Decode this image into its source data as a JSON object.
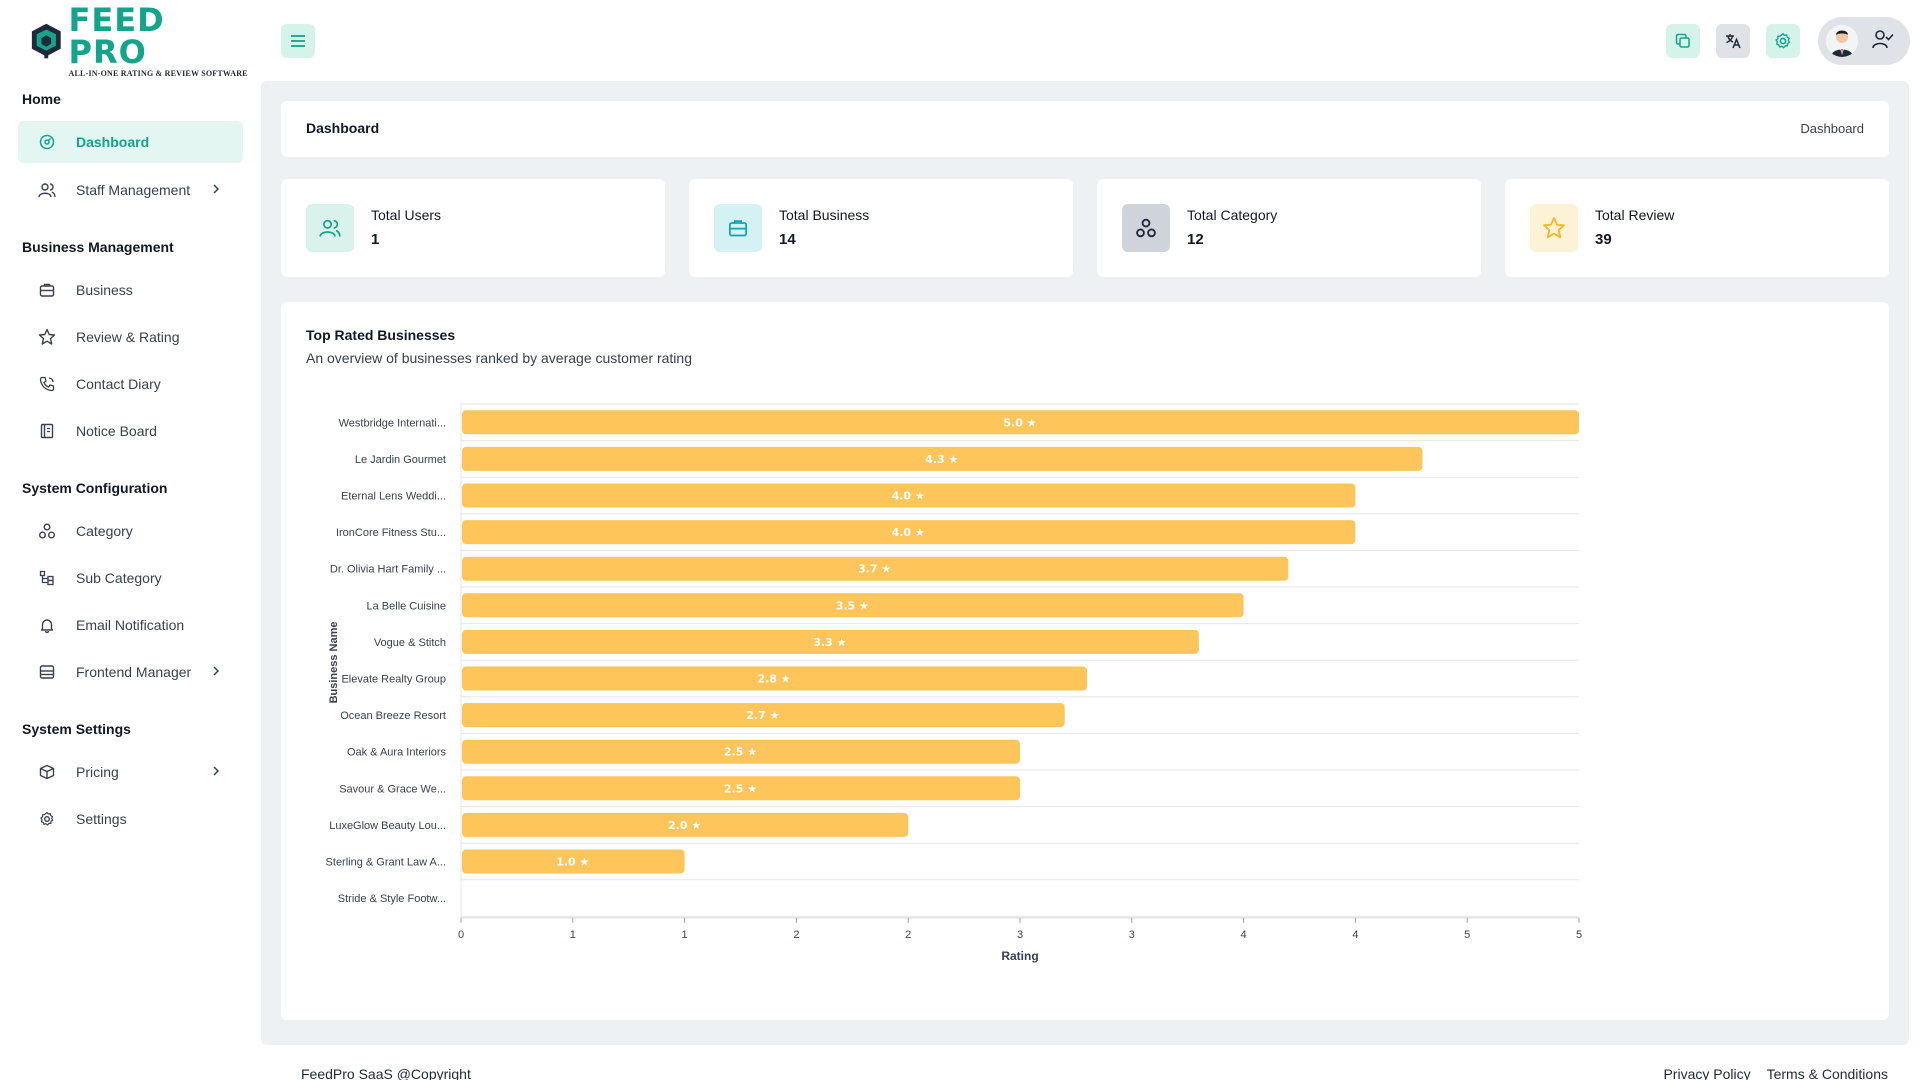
{
  "brand": {
    "title_a": "FEED",
    "title_b": "PRO",
    "subtitle": "ALL-IN-ONE RATING & REVIEW SOFTWARE",
    "accent": "#14a38b"
  },
  "sidebar": {
    "sections": [
      {
        "label": "Home"
      },
      {
        "label": "Business Management"
      },
      {
        "label": "System Configuration"
      },
      {
        "label": "System Settings"
      }
    ],
    "items": [
      {
        "label": "Dashboard",
        "icon": "dashboard-icon",
        "active": true
      },
      {
        "label": "Staff Management",
        "icon": "users-icon",
        "chevron": true
      },
      {
        "label": "Business",
        "icon": "briefcase-icon"
      },
      {
        "label": "Review & Rating",
        "icon": "star-icon"
      },
      {
        "label": "Contact Diary",
        "icon": "phone-icon"
      },
      {
        "label": "Notice Board",
        "icon": "notice-icon"
      },
      {
        "label": "Category",
        "icon": "category-icon"
      },
      {
        "label": "Sub Category",
        "icon": "subcategory-icon"
      },
      {
        "label": "Email Notification",
        "icon": "bell-icon"
      },
      {
        "label": "Frontend Manager",
        "icon": "layout-icon",
        "chevron": true
      },
      {
        "label": "Pricing",
        "icon": "box-icon",
        "chevron": true
      },
      {
        "label": "Settings",
        "icon": "gear-icon"
      }
    ]
  },
  "header": {
    "icons": [
      "copy-icon",
      "translate-icon",
      "gear-icon",
      "user-check-icon"
    ]
  },
  "page": {
    "title": "Dashboard",
    "breadcrumb": "Dashboard"
  },
  "stats": [
    {
      "label": "Total Users",
      "value": "1",
      "icon": "users-icon",
      "color": "#d9f3ec",
      "icon_color": "#14a38b"
    },
    {
      "label": "Total Business",
      "value": "14",
      "icon": "briefcase-icon",
      "color": "#d4f1f4",
      "icon_color": "#14a3b5"
    },
    {
      "label": "Total Category",
      "value": "12",
      "icon": "category-icon",
      "color": "#cfd4da",
      "icon_color": "#1f2937"
    },
    {
      "label": "Total Review",
      "value": "39",
      "icon": "star-icon",
      "color": "#fdf2d6",
      "icon_color": "#f5b82e"
    }
  ],
  "chart": {
    "title": "Top Rated Businesses",
    "subtitle": "An overview of businesses ranked by average customer rating"
  },
  "chart_data": {
    "type": "bar",
    "orientation": "horizontal",
    "categories": [
      "Westbridge Internati...",
      "Le Jardin Gourmet",
      "Eternal Lens Weddi...",
      "IronCore Fitness Stu...",
      "Dr. Olivia Hart Family ...",
      "La Belle Cuisine",
      "Vogue & Stitch",
      "Elevate Realty Group",
      "Ocean Breeze Resort",
      "Oak & Aura Interiors",
      "Savour & Grace We...",
      "LuxeGlow Beauty Lou...",
      "Sterling & Grant Law A...",
      "Stride & Style Footw..."
    ],
    "values": [
      5.0,
      4.3,
      4.0,
      4.0,
      3.7,
      3.5,
      3.3,
      2.8,
      2.7,
      2.5,
      2.5,
      2.0,
      1.0,
      0
    ],
    "data_labels": [
      "5.0 ★",
      "4.3 ★",
      "4.0 ★",
      "4.0 ★",
      "3.7 ★",
      "3.5 ★",
      "3.3 ★",
      "2.8 ★",
      "2.7 ★",
      "2.5 ★",
      "2.5 ★",
      "2.0 ★",
      "1.0 ★",
      ""
    ],
    "xticks": [
      "0",
      "1",
      "1",
      "2",
      "2",
      "3",
      "3",
      "4",
      "4",
      "5",
      "5"
    ],
    "xlabel": "Rating",
    "ylabel": "Business Name",
    "xlim": [
      0,
      5
    ],
    "bar_color": "#fdc55a",
    "grid": true
  },
  "footer": {
    "copyright": "FeedPro SaaS @Copyright",
    "privacy": "Privacy Policy",
    "terms": "Terms & Conditions"
  }
}
